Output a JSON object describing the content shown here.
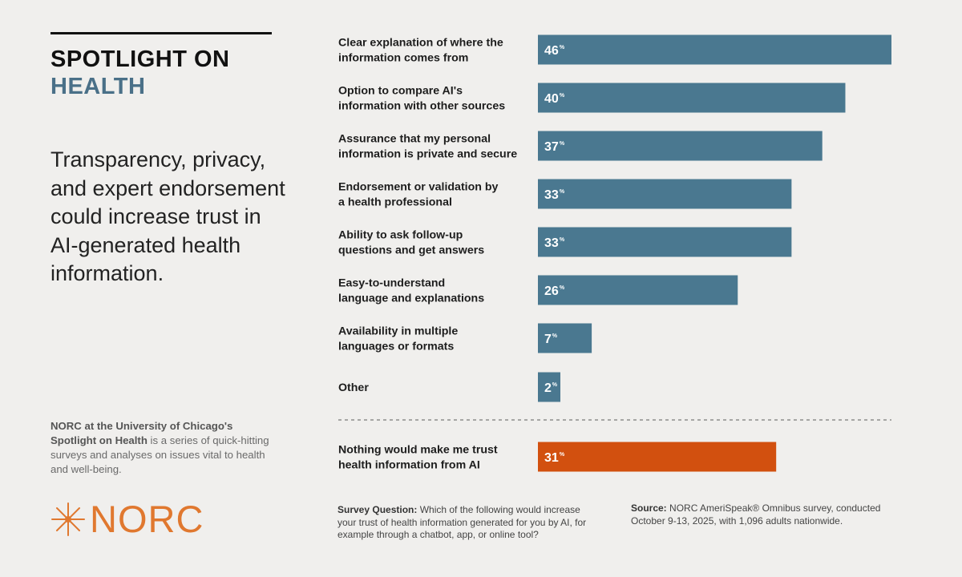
{
  "header": {
    "title_line1": "SPOTLIGHT ON",
    "title_line2": "HEALTH"
  },
  "headline": "Transparency, privacy, and expert endorsement could increase trust in AI-generated health information.",
  "about": {
    "org": "NORC at the University of Chicago's",
    "series": "Spotlight on Health",
    "rest": " is a series of quick-hitting surveys and analyses on issues vital to health and well-being."
  },
  "logo": {
    "text": "NORC",
    "icon": "norc-star-icon"
  },
  "colors": {
    "bar": "#4a7890",
    "highlight": "#d2500f",
    "accent": "#e0782f",
    "title_accent": "#4a7088"
  },
  "chart_data": {
    "type": "bar",
    "orientation": "horizontal",
    "categories": [
      "Clear explanation of where the information comes from",
      "Option to compare AI's information with other sources",
      "Assurance that my personal information is private and secure",
      "Endorsement or validation by a health professional",
      "Ability to ask follow-up questions and get answers",
      "Easy-to-understand language and explanations",
      "Availability in multiple languages or formats",
      "Other",
      "Nothing would make me trust health information from AI"
    ],
    "label_lines": [
      [
        "Clear explanation of where the",
        "information comes from"
      ],
      [
        "Option to compare AI's",
        "information with other sources"
      ],
      [
        "Assurance that my personal",
        "information is private and secure"
      ],
      [
        "Endorsement or validation by",
        "a health professional"
      ],
      [
        "Ability to ask follow-up",
        "questions and get answers"
      ],
      [
        "Easy-to-understand",
        "language and explanations"
      ],
      [
        "Availability in multiple",
        "languages or formats"
      ],
      [
        "Other"
      ],
      [
        "Nothing would make me trust",
        "health information from AI"
      ]
    ],
    "values": [
      46,
      40,
      37,
      33,
      33,
      26,
      7,
      2,
      31
    ],
    "unit": "%",
    "highlighted": [
      false,
      false,
      false,
      false,
      false,
      false,
      false,
      false,
      true
    ],
    "xlim": [
      0,
      46
    ]
  },
  "footer": {
    "question_label": "Survey Question:",
    "question_text": " Which of the following would increase your trust of health information generated for you by AI, for example through a chatbot, app, or online tool?",
    "source_label": "Source:",
    "source_text": " NORC AmeriSpeak® Omnibus survey, conducted October 9-13, 2025, with 1,096 adults nationwide."
  }
}
